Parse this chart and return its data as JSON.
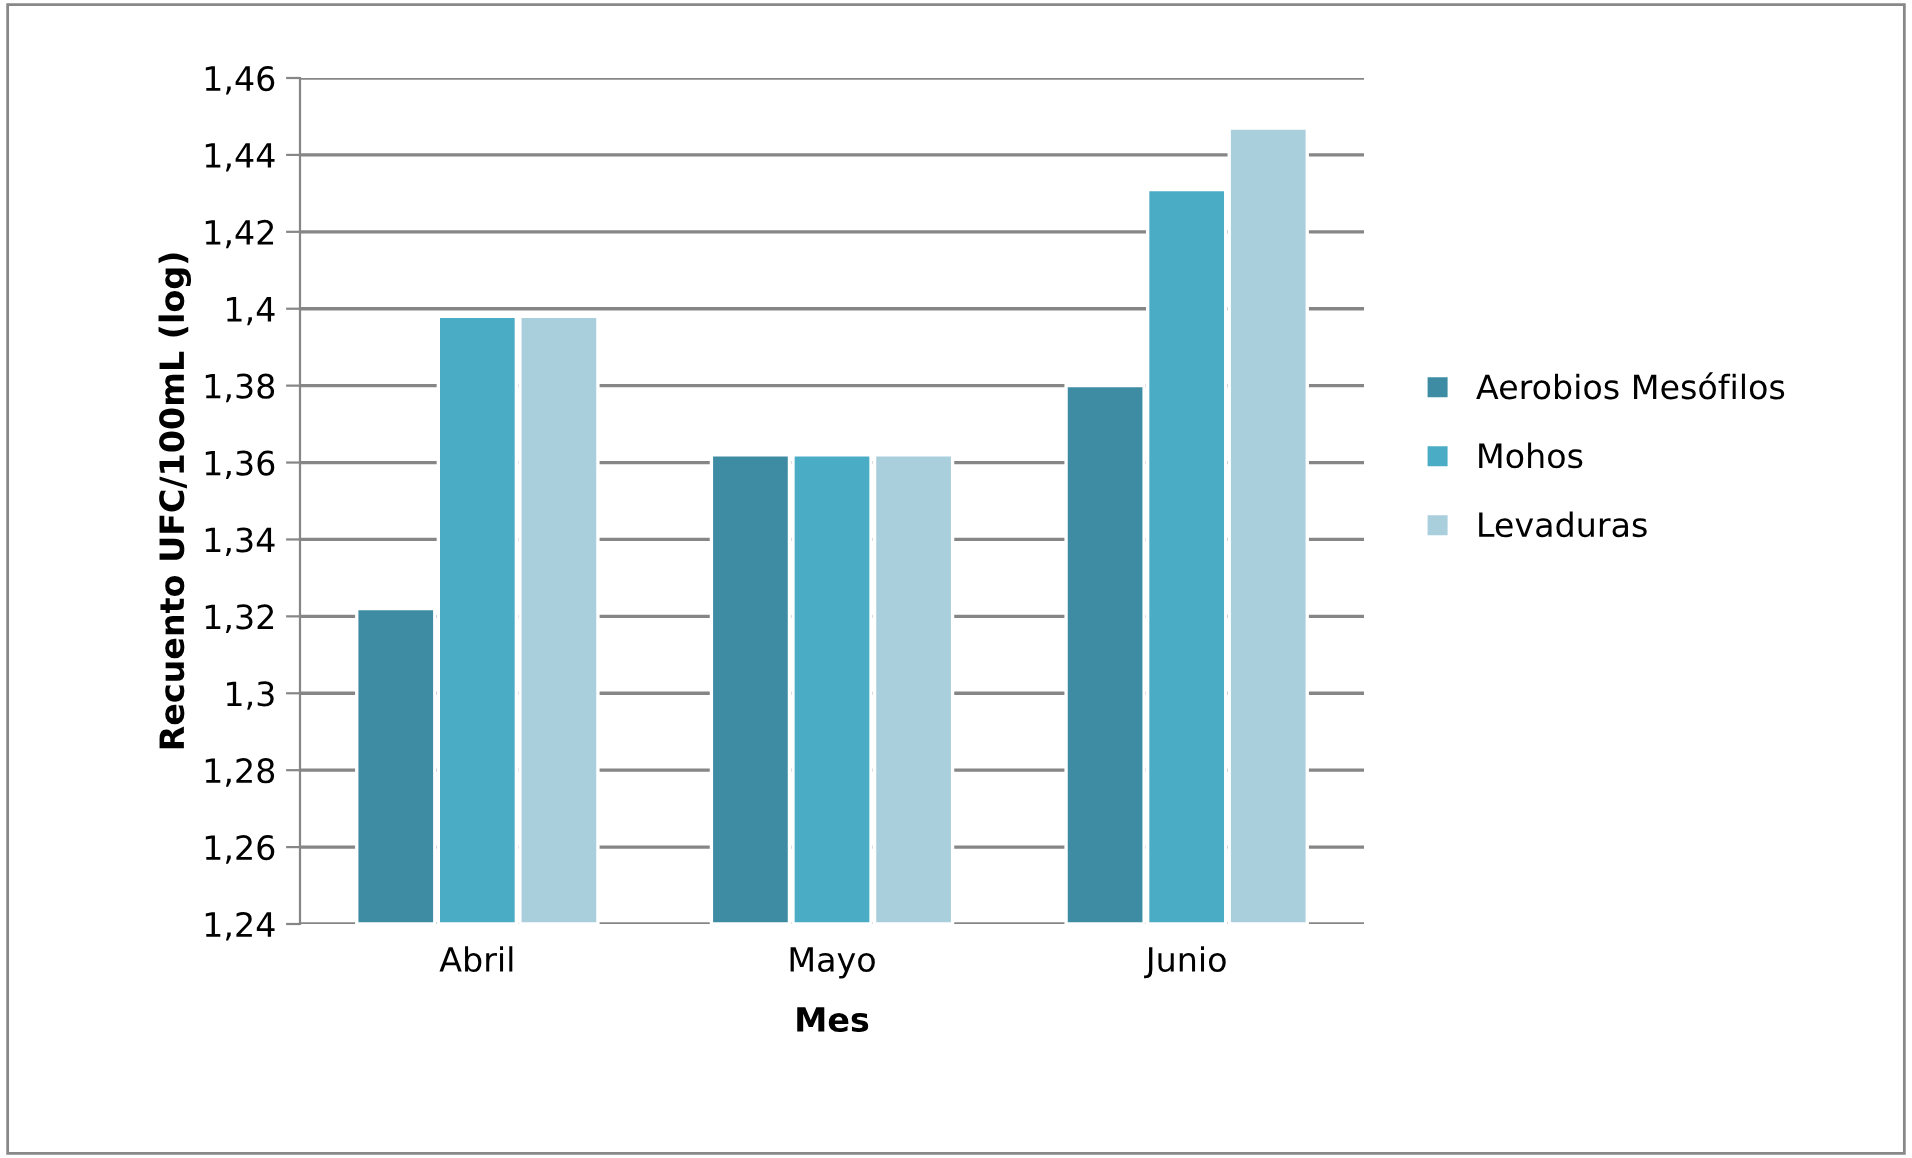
{
  "chart_data": {
    "type": "bar",
    "xlabel": "Mes",
    "ylabel": "Recuento UFC/100mL (log)",
    "categories": [
      "Abril",
      "Mayo",
      "Junio"
    ],
    "series": [
      {
        "name": "Aerobios Mesófilos",
        "color": "#3d8ca3",
        "values": [
          1.322,
          1.362,
          1.38
        ]
      },
      {
        "name": "Mohos",
        "color": "#4bacc6",
        "values": [
          1.398,
          1.362,
          1.431
        ]
      },
      {
        "name": "Levaduras",
        "color": "#a9cedc",
        "values": [
          1.398,
          1.362,
          1.447
        ]
      }
    ],
    "ylim": [
      1.24,
      1.46
    ],
    "yticks": [
      {
        "value": 1.24,
        "label": "1,24"
      },
      {
        "value": 1.26,
        "label": "1,26"
      },
      {
        "value": 1.28,
        "label": "1,28"
      },
      {
        "value": 1.3,
        "label": "1,3"
      },
      {
        "value": 1.32,
        "label": "1,32"
      },
      {
        "value": 1.34,
        "label": "1,34"
      },
      {
        "value": 1.36,
        "label": "1,36"
      },
      {
        "value": 1.38,
        "label": "1,38"
      },
      {
        "value": 1.4,
        "label": "1,4"
      },
      {
        "value": 1.42,
        "label": "1,42"
      },
      {
        "value": 1.44,
        "label": "1,44"
      },
      {
        "value": 1.46,
        "label": "1,46"
      }
    ],
    "grid": "y",
    "legend": "right"
  }
}
